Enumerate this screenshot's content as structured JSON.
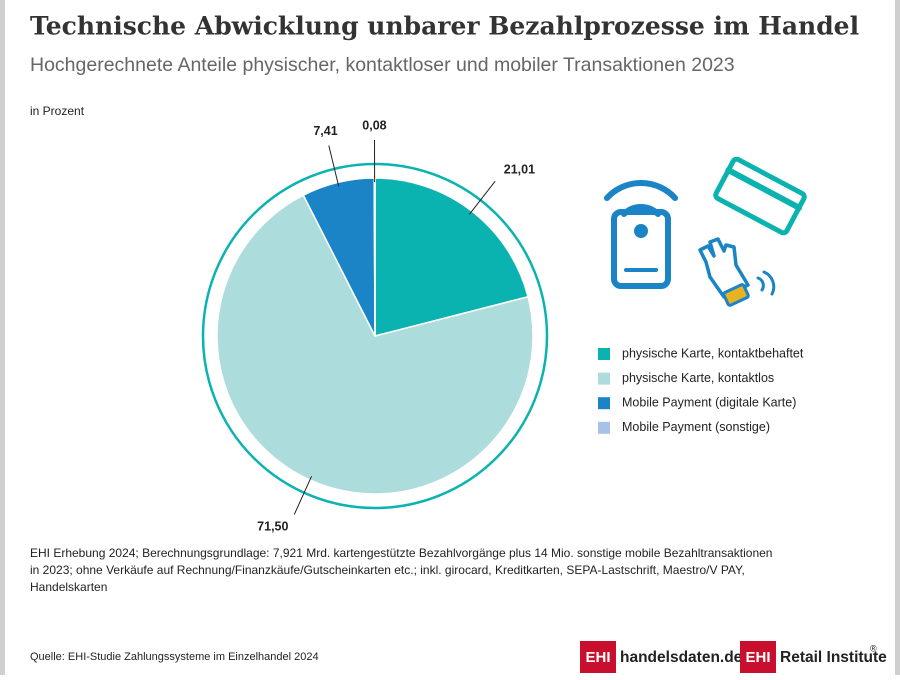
{
  "chart_data": {
    "type": "pie",
    "title": "Technische Abwicklung unbarer Bezahlprozesse im Handel",
    "subtitle": "Hochgerechnete Anteile physischer, kontaktloser und mobiler Transaktionen 2023",
    "unit_label": "in Prozent",
    "categories": [
      "physische Karte, kontaktbehaftet",
      "physische Karte, kontaktlos",
      "Mobile Payment (digitale Karte)",
      "Mobile Payment (sonstige)"
    ],
    "values": [
      21.01,
      71.5,
      7.41,
      0.08
    ],
    "value_labels": [
      "21,01",
      "71,50",
      "7,41",
      "0,08"
    ],
    "colors": [
      "#0bb3b0",
      "#acdcdc",
      "#1b84c6",
      "#a7c1e8"
    ],
    "note_lines": [
      "EHI Erhebung 2024; Berechnungsgrundlage: 7,921 Mrd. kartengestützte Bezahlvorgänge plus 14 Mio. sonstige mobile Bezahltransaktionen",
      "in 2023; ohne Verkäufe auf Rechnung/Finanzkäufe/Gutscheinkarten etc.; inkl. girocard, Kreditkarten, SEPA-Lastschrift, Maestro/V PAY,",
      "Handelskarten"
    ],
    "source": "Quelle: EHI-Studie Zahlungssysteme im Einzelhandel 2024",
    "logos": [
      {
        "mark": "EHI",
        "text": "handelsdaten.de"
      },
      {
        "mark": "EHI",
        "text": "Retail Institute",
        "registered": "®"
      }
    ]
  }
}
